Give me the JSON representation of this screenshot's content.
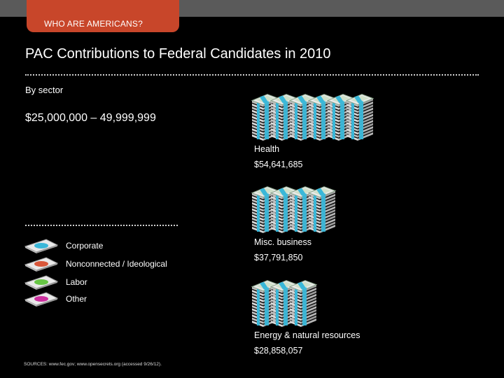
{
  "header": {
    "tab_label": "WHO ARE AMERICANS?",
    "title": "PAC Contributions to Federal Candidates in 2010",
    "subtitle": "By sector",
    "range": "$25,000,000 – 49,999,999"
  },
  "legend": [
    {
      "label": "Corporate",
      "color": "#3ab7d8"
    },
    {
      "label": "Nonconnected / Ideological",
      "color": "#d9573a"
    },
    {
      "label": "Labor",
      "color": "#66c544"
    },
    {
      "label": "Other",
      "color": "#cc2f9e"
    }
  ],
  "sectors": [
    {
      "name": "Health",
      "value": "$54,641,685",
      "stacks": 6,
      "band_color": "#3ab7d8"
    },
    {
      "name": "Misc. business",
      "value": "$37,791,850",
      "stacks": 4,
      "band_color": "#3ab7d8"
    },
    {
      "name": "Energy & natural resources",
      "value": "$28,858,057",
      "stacks": 3,
      "band_color": "#3ab7d8"
    }
  ],
  "footer": {
    "sources": "SOURCES: www.fec.gov; www.opensecrets.org (accessed 9/26/12)."
  }
}
